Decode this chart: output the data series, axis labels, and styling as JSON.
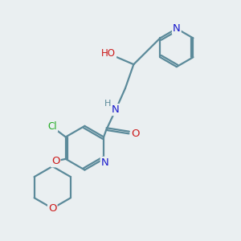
{
  "bg_color": "#eaeff1",
  "bond_color": "#5b8a9a",
  "bond_width": 1.6,
  "atom_colors": {
    "N": "#1a1acc",
    "O": "#cc1a1a",
    "Cl": "#22aa22",
    "H": "#5b8a9a",
    "C": "#5b8a9a"
  },
  "font_size": 8.5,
  "figsize": [
    3.0,
    3.0
  ],
  "dpi": 100
}
